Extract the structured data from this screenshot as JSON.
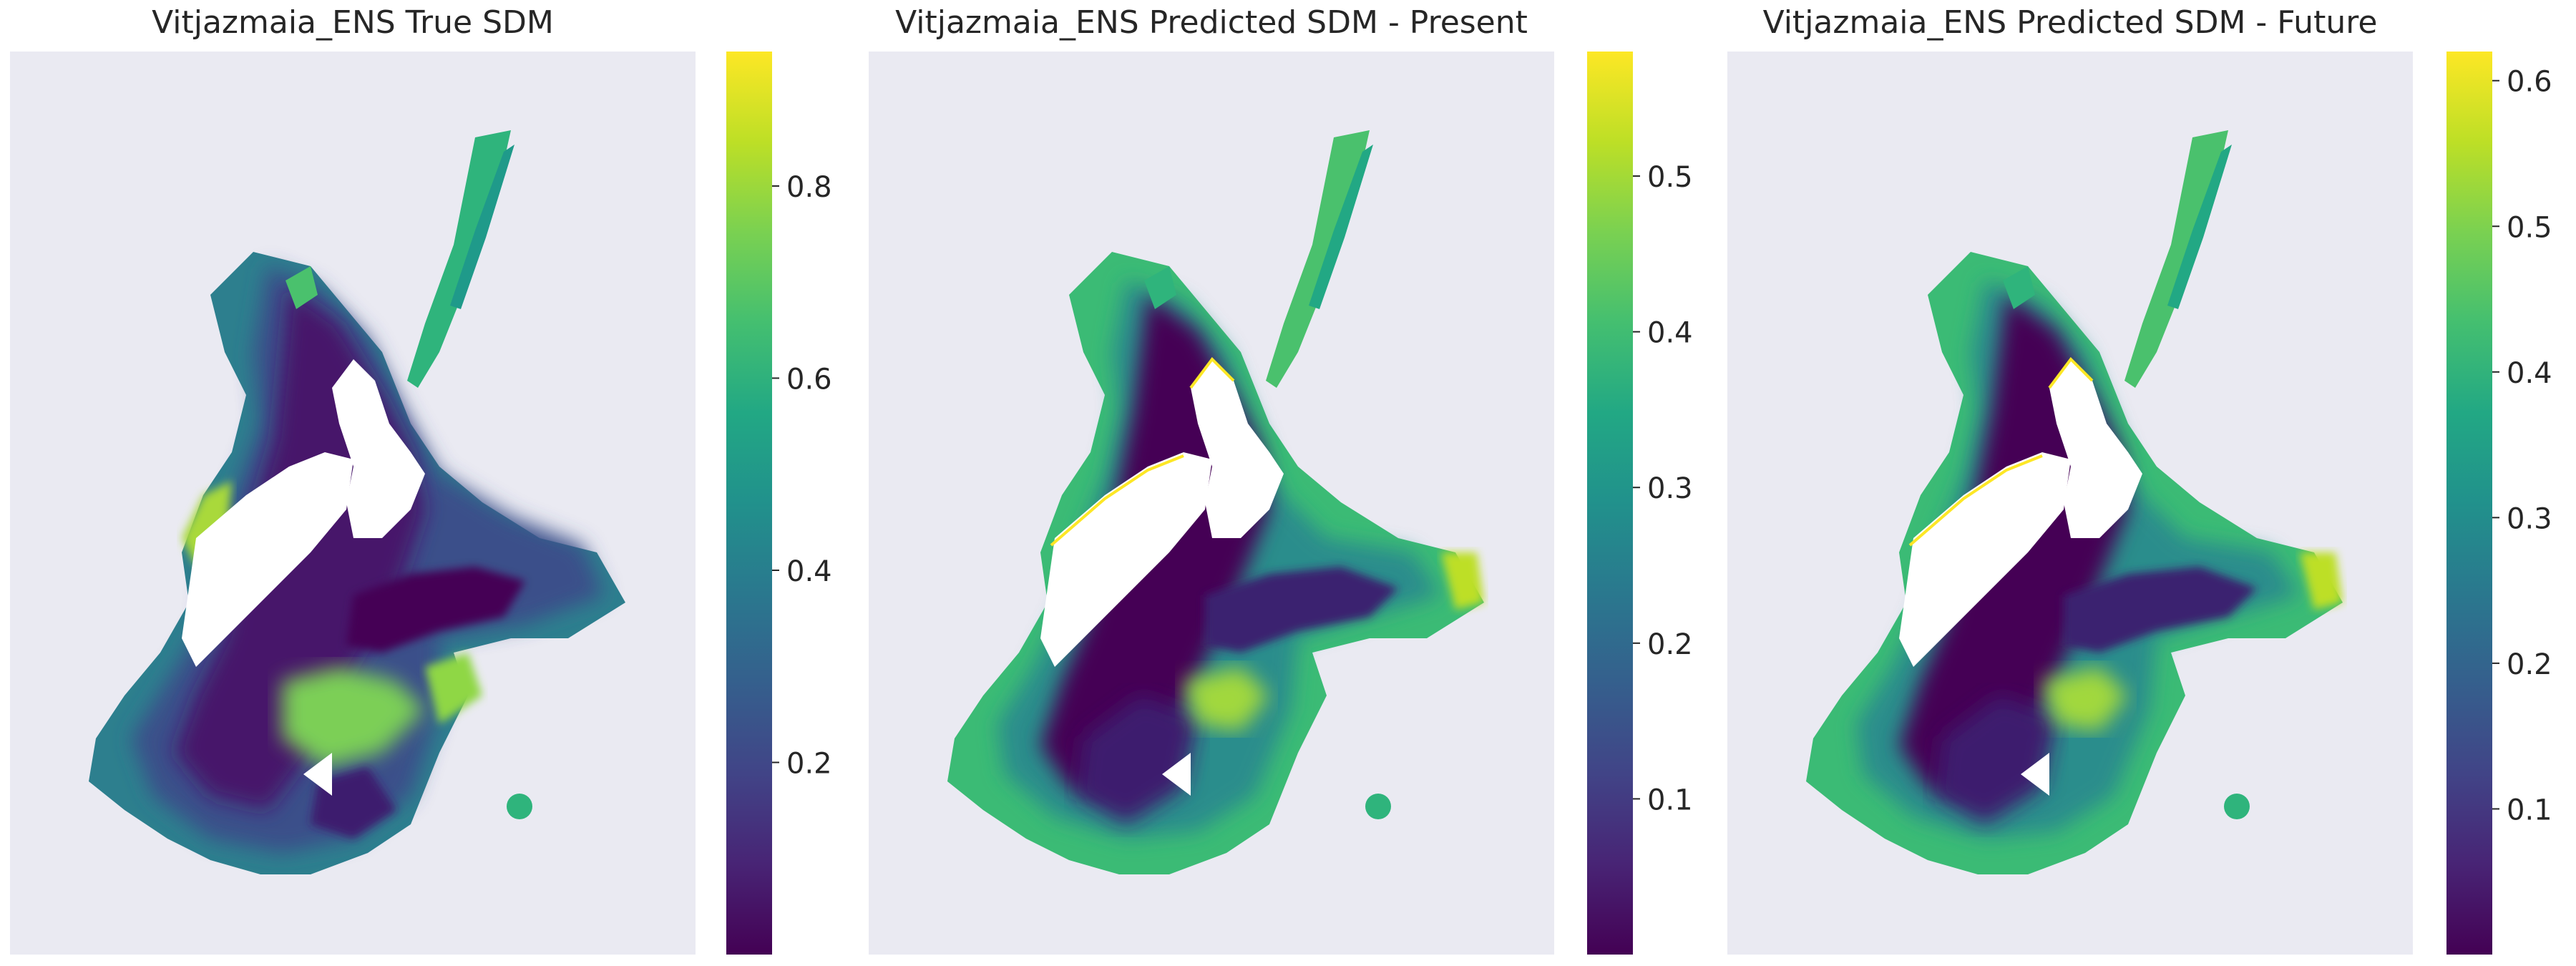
{
  "chart_data": [
    {
      "type": "heatmap",
      "title": "Vitjazmaia_ENS True SDM",
      "xlabel": "",
      "ylabel": "",
      "grid": false,
      "background_color": "#eaeaf2",
      "colormap": "viridis",
      "colorbar": {
        "range": [
          0.0,
          0.94
        ],
        "ticks": [
          0.2,
          0.4,
          0.6,
          0.8
        ],
        "tick_labels": [
          "0.2",
          "0.4",
          "0.6",
          "0.8"
        ]
      }
    },
    {
      "type": "heatmap",
      "title": "Vitjazmaia_ENS Predicted SDM - Present",
      "xlabel": "",
      "ylabel": "",
      "grid": false,
      "background_color": "#eaeaf2",
      "colormap": "viridis",
      "colorbar": {
        "range": [
          0.0,
          0.58
        ],
        "ticks": [
          0.1,
          0.2,
          0.3,
          0.4,
          0.5
        ],
        "tick_labels": [
          "0.1",
          "0.2",
          "0.3",
          "0.4",
          "0.5"
        ]
      }
    },
    {
      "type": "heatmap",
      "title": "Vitjazmaia_ENS Predicted SDM - Future",
      "xlabel": "",
      "ylabel": "",
      "grid": false,
      "background_color": "#eaeaf2",
      "colormap": "viridis",
      "colorbar": {
        "range": [
          0.0,
          0.62
        ],
        "ticks": [
          0.1,
          0.2,
          0.3,
          0.4,
          0.5,
          0.6
        ],
        "tick_labels": [
          "0.1",
          "0.2",
          "0.3",
          "0.4",
          "0.5",
          "0.6"
        ]
      }
    }
  ]
}
